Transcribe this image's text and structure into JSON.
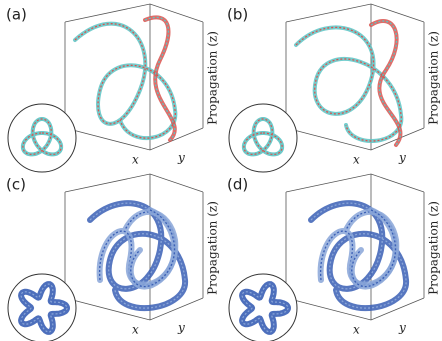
{
  "panels": [
    {
      "label": "(a)",
      "axis_z": "Propagation (z)",
      "axis_x": "x",
      "axis_y": "y"
    },
    {
      "label": "(b)",
      "axis_z": "Propagation (z)",
      "axis_x": "x",
      "axis_y": "y"
    },
    {
      "label": "(c)",
      "axis_z": "Propagation (z)",
      "axis_x": "x",
      "axis_y": "y"
    },
    {
      "label": "(d)",
      "axis_z": "Propagation (z)",
      "axis_x": "x",
      "axis_y": "y"
    }
  ]
}
